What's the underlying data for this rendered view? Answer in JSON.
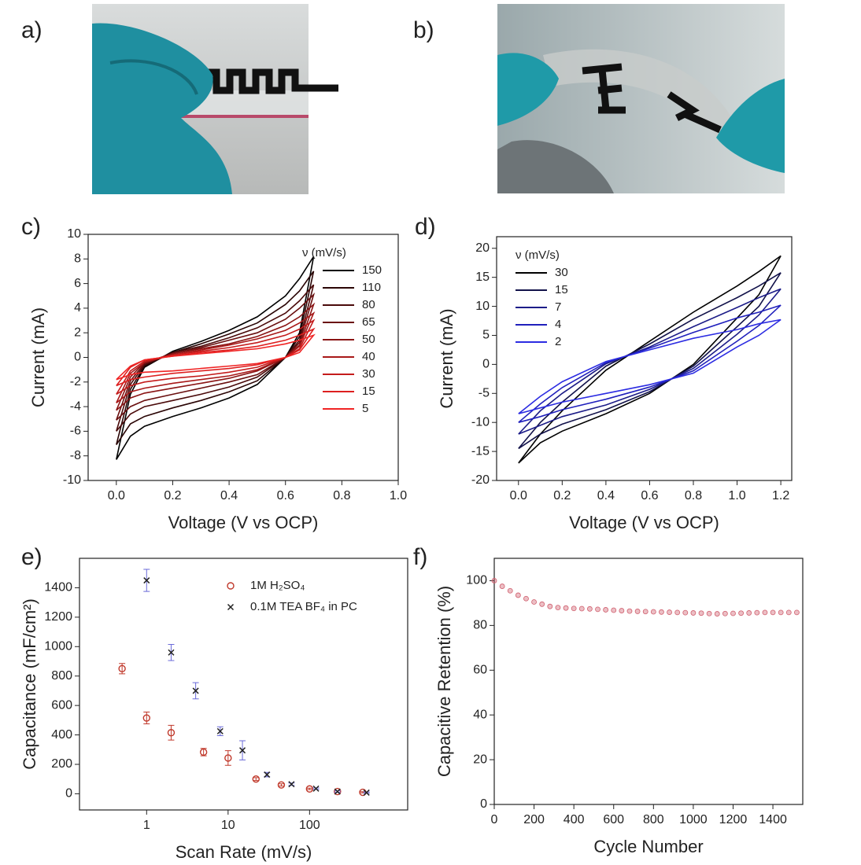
{
  "panel_labels": [
    "a)",
    "b)",
    "c)",
    "d)",
    "e)",
    "f)"
  ],
  "chart_data": [
    {
      "type": "line",
      "xlabel": "Voltage (V vs OCP)",
      "ylabel": "Current (mA)",
      "legend_title": "ν (mV/s)",
      "legend": "upper right",
      "xlim": [
        -0.1,
        1.0
      ],
      "xticks": [
        {
          "value": 0,
          "label": "0.0"
        },
        0.2,
        0.4,
        0.6,
        0.8,
        {
          "value": 1,
          "label": "1.0"
        }
      ],
      "ylim": [
        -10,
        10
      ],
      "yticks": [
        -10,
        -8,
        -6,
        -4,
        -2,
        0,
        2,
        4,
        6,
        8,
        10
      ],
      "x": [
        0,
        0.05,
        0.1,
        0.2,
        0.3,
        0.4,
        0.5,
        0.6,
        0.65,
        0.7,
        0.65,
        0.6,
        0.5,
        0.4,
        0.3,
        0.2,
        0.1,
        0.05,
        0
      ],
      "series": [
        {
          "name": "150",
          "color": "#000000",
          "values": [
            -8.3,
            -3.0,
            -0.8,
            0.5,
            1.3,
            2.2,
            3.3,
            5.0,
            6.4,
            8.2,
            2.0,
            0.0,
            -2.2,
            -3.3,
            -4.1,
            -4.8,
            -5.6,
            -6.4,
            -8.3
          ]
        },
        {
          "name": "110",
          "color": "#2a0505",
          "values": [
            -7.1,
            -2.6,
            -0.7,
            0.4,
            1.1,
            1.9,
            2.8,
            4.3,
            5.4,
            7.0,
            1.7,
            0.0,
            -1.9,
            -2.8,
            -3.5,
            -4.1,
            -4.8,
            -5.4,
            -7.1
          ]
        },
        {
          "name": "80",
          "color": "#4a0a0a",
          "values": [
            -6.0,
            -2.2,
            -0.6,
            0.4,
            0.9,
            1.6,
            2.4,
            3.6,
            4.6,
            5.9,
            1.4,
            0.0,
            -1.6,
            -2.4,
            -3.0,
            -3.5,
            -4.0,
            -4.6,
            -6.0
          ]
        },
        {
          "name": "65",
          "color": "#6a0f0f",
          "values": [
            -5.1,
            -1.9,
            -0.5,
            0.3,
            0.8,
            1.4,
            2.0,
            3.1,
            4.0,
            5.1,
            1.2,
            0.0,
            -1.4,
            -2.0,
            -2.5,
            -3.0,
            -3.5,
            -4.0,
            -5.1
          ]
        },
        {
          "name": "50",
          "color": "#8a1414",
          "values": [
            -4.3,
            -1.6,
            -0.4,
            0.3,
            0.7,
            1.1,
            1.7,
            2.6,
            3.3,
            4.3,
            1.0,
            0.0,
            -1.1,
            -1.7,
            -2.1,
            -2.5,
            -2.9,
            -3.3,
            -4.3
          ]
        },
        {
          "name": "40",
          "color": "#a81818",
          "values": [
            -3.7,
            -1.3,
            -0.4,
            0.2,
            0.6,
            1.0,
            1.5,
            2.2,
            2.8,
            3.6,
            0.9,
            0.0,
            -1.0,
            -1.5,
            -1.8,
            -2.1,
            -2.5,
            -2.8,
            -3.7
          ]
        },
        {
          "name": "30",
          "color": "#c41c1c",
          "values": [
            -3.0,
            -1.1,
            -0.3,
            0.2,
            0.5,
            0.8,
            1.2,
            1.8,
            2.3,
            3.0,
            0.7,
            0.0,
            -0.8,
            -1.2,
            -1.5,
            -1.7,
            -2.0,
            -2.3,
            -3.0
          ]
        },
        {
          "name": "15",
          "color": "#dd2020",
          "values": [
            -2.3,
            -0.8,
            -0.2,
            0.1,
            0.4,
            0.6,
            0.9,
            1.4,
            1.8,
            2.3,
            0.6,
            0.0,
            -0.6,
            -0.9,
            -1.1,
            -1.3,
            -1.6,
            -1.8,
            -2.3
          ]
        },
        {
          "name": "5",
          "color": "#f02424",
          "values": [
            -1.8,
            -0.7,
            -0.2,
            0.1,
            0.3,
            0.5,
            0.7,
            1.1,
            1.4,
            1.8,
            0.4,
            0.0,
            -0.5,
            -0.7,
            -0.9,
            -1.1,
            -1.2,
            -1.4,
            -1.8
          ]
        }
      ]
    },
    {
      "type": "line",
      "xlabel": "Voltage (V vs OCP)",
      "ylabel": "Current (mA)",
      "legend_title": "ν (mV/s)",
      "legend": "upper left",
      "xlim": [
        -0.1,
        1.25
      ],
      "xticks": [
        {
          "value": 0,
          "label": "0.0"
        },
        0.2,
        0.4,
        0.6,
        0.8,
        {
          "value": 1,
          "label": "1.0"
        },
        1.2
      ],
      "ylim": [
        -20,
        22
      ],
      "yticks": [
        -20,
        -15,
        -10,
        -5,
        0,
        5,
        10,
        15,
        20
      ],
      "x": [
        0,
        0.1,
        0.2,
        0.4,
        0.6,
        0.8,
        1.0,
        1.1,
        1.2,
        1.1,
        1.0,
        0.8,
        0.6,
        0.4,
        0.2,
        0.1,
        0
      ],
      "series": [
        {
          "name": "30",
          "color": "#000000",
          "values": [
            -17,
            -12,
            -8,
            -1,
            4,
            9,
            13.5,
            16,
            18.7,
            12,
            8,
            0,
            -5,
            -8.5,
            -11.5,
            -13.5,
            -17
          ]
        },
        {
          "name": "15",
          "color": "#12124a",
          "values": [
            -14.5,
            -10,
            -6.5,
            -0.3,
            3.5,
            7.8,
            11.5,
            13.5,
            15.8,
            10,
            6.5,
            -0.3,
            -4.7,
            -7.8,
            -10.3,
            -12,
            -14.5
          ]
        },
        {
          "name": "7",
          "color": "#1c1c88",
          "values": [
            -12,
            -8,
            -5,
            0.1,
            3,
            6.5,
            9.8,
            11.5,
            13,
            8.5,
            5.2,
            -0.7,
            -4.3,
            -7,
            -9,
            -10.5,
            -12
          ]
        },
        {
          "name": "4",
          "color": "#2020bc",
          "values": [
            -10,
            -6.8,
            -4,
            0.3,
            2.8,
            5.5,
            8,
            9,
            10.2,
            6.7,
            4,
            -1.1,
            -3.9,
            -6,
            -7.8,
            -9,
            -10
          ]
        },
        {
          "name": "2",
          "color": "#2c2ce2",
          "values": [
            -8.5,
            -5.5,
            -3,
            0.5,
            2.5,
            4.5,
            6,
            7,
            7.7,
            5,
            3,
            -1.5,
            -3.5,
            -5,
            -6.5,
            -7.5,
            -8.5
          ]
        }
      ]
    },
    {
      "type": "scatter",
      "xlabel": "Scan Rate (mV/s)",
      "ylabel": "Capacitance (mF/cm²)",
      "legend": "upper right",
      "xscale": "log",
      "xlim": [
        0.15,
        1600
      ],
      "xticks": [
        1,
        10,
        100
      ],
      "ylim": [
        -110,
        1600
      ],
      "yticks": [
        0,
        200,
        400,
        600,
        800,
        1000,
        1200,
        1400
      ],
      "series": [
        {
          "name": "1M H₂SO₄",
          "marker": "circle",
          "color": "#c0392b",
          "error_color": "#c0392b",
          "x": [
            0.5,
            1,
            2,
            5,
            10,
            22,
            45,
            100,
            220,
            450
          ],
          "values": [
            850,
            515,
            415,
            283,
            243,
            100,
            60,
            33,
            15,
            10
          ],
          "errors": [
            35,
            40,
            50,
            25,
            50,
            10,
            8,
            5,
            5,
            4
          ]
        },
        {
          "name": "0.1M TEA BF₄ in PC",
          "marker": "cross",
          "color": "#222222",
          "error_color": "#6a6ad8",
          "x": [
            1,
            2,
            4,
            8,
            15,
            30,
            60,
            120,
            220,
            500
          ],
          "values": [
            1450,
            960,
            700,
            425,
            295,
            130,
            65,
            35,
            15,
            8
          ],
          "errors": [
            75,
            55,
            55,
            30,
            65,
            15,
            8,
            5,
            5,
            4
          ]
        }
      ]
    },
    {
      "type": "scatter",
      "xlabel": "Cycle Number",
      "ylabel": "Capacitive Retention (%)",
      "xlim": [
        0,
        1550
      ],
      "xticks": [
        0,
        200,
        400,
        600,
        800,
        1000,
        1200,
        1400
      ],
      "ylim": [
        0,
        110
      ],
      "yticks": [
        0,
        20,
        40,
        60,
        80,
        100
      ],
      "series": [
        {
          "marker": "dot",
          "color": "#d0606f",
          "x": [
            0,
            40,
            80,
            120,
            160,
            200,
            240,
            280,
            320,
            360,
            400,
            440,
            480,
            520,
            560,
            600,
            640,
            680,
            720,
            760,
            800,
            840,
            880,
            920,
            960,
            1000,
            1040,
            1080,
            1120,
            1160,
            1200,
            1240,
            1280,
            1320,
            1360,
            1400,
            1440,
            1480,
            1520
          ],
          "values": [
            100,
            97.5,
            95.5,
            93.5,
            92,
            90.5,
            89.5,
            88.5,
            88,
            87.8,
            87.6,
            87.5,
            87.4,
            87.2,
            87,
            86.8,
            86.6,
            86.4,
            86.3,
            86.2,
            86.1,
            86,
            85.9,
            85.8,
            85.7,
            85.6,
            85.5,
            85.3,
            85.2,
            85.3,
            85.4,
            85.5,
            85.6,
            85.7,
            85.8,
            85.8,
            85.8,
            85.8,
            85.8
          ]
        }
      ]
    }
  ]
}
